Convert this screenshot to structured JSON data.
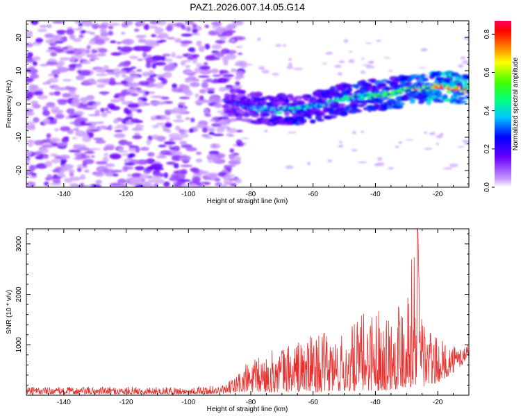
{
  "title": "PAZ1.2026.007.14.05.G14",
  "chart_data": [
    {
      "type": "heatmap",
      "title": "PAZ1.2026.007.14.05.G14",
      "xlabel": "Height of straight line (km)",
      "ylabel": "Frequency (Hz)",
      "xlim": [
        -152,
        -10
      ],
      "ylim": [
        -25,
        25
      ],
      "xticks": [
        -140,
        -120,
        -100,
        -80,
        -60,
        -40,
        -20
      ],
      "yticks": [
        -20,
        -10,
        0,
        10,
        20
      ],
      "grid": false,
      "colorbar": {
        "label": "Normalized spectral amplitude",
        "range": [
          0,
          0.87
        ],
        "ticks": [
          0.0,
          0.2,
          0.4,
          0.6,
          0.8
        ],
        "colormap": "rainbow (violet=low, red/pink=high)"
      },
      "noise_region": {
        "x_range": [
          -152,
          -87
        ],
        "y_range": [
          -25,
          25
        ],
        "amplitude": [
          0.05,
          0.2
        ]
      },
      "signal_ridge": {
        "description": "Bright ridge of spectral energy rising in frequency with height",
        "points": [
          {
            "x": -88,
            "y": 1,
            "amp": 0.3
          },
          {
            "x": -80,
            "y": -1,
            "amp": 0.4
          },
          {
            "x": -72,
            "y": -2,
            "amp": 0.45
          },
          {
            "x": -65,
            "y": -1.5,
            "amp": 0.5
          },
          {
            "x": -58,
            "y": -0.5,
            "amp": 0.45
          },
          {
            "x": -50,
            "y": 1.5,
            "amp": 0.55
          },
          {
            "x": -42,
            "y": 2.5,
            "amp": 0.55
          },
          {
            "x": -35,
            "y": 3,
            "amp": 0.6
          },
          {
            "x": -28,
            "y": 4.5,
            "amp": 0.65
          },
          {
            "x": -20,
            "y": 5,
            "amp": 0.8
          },
          {
            "x": -16,
            "y": 5,
            "amp": 0.85
          },
          {
            "x": -10,
            "y": 4,
            "amp": 0.7
          }
        ]
      }
    },
    {
      "type": "line",
      "xlabel": "Height of straight line (km)",
      "ylabel": "SNR (10 * v/v)",
      "xlim": [
        -152,
        -10
      ],
      "ylim": [
        0,
        3300
      ],
      "xticks": [
        -140,
        -120,
        -100,
        -80,
        -60,
        -40,
        -20
      ],
      "yticks": [
        1000,
        2000,
        3000
      ],
      "grid": false,
      "series": [
        {
          "name": "SNR",
          "color": "#e8302e",
          "envelope": [
            {
              "x": -152,
              "low": 20,
              "high": 160
            },
            {
              "x": -120,
              "low": 20,
              "high": 170
            },
            {
              "x": -100,
              "low": 20,
              "high": 160
            },
            {
              "x": -88,
              "low": 30,
              "high": 200
            },
            {
              "x": -82,
              "low": 50,
              "high": 620
            },
            {
              "x": -70,
              "low": 60,
              "high": 1000
            },
            {
              "x": -58,
              "low": 60,
              "high": 1250
            },
            {
              "x": -50,
              "low": 70,
              "high": 1200
            },
            {
              "x": -42,
              "low": 90,
              "high": 1800
            },
            {
              "x": -35,
              "low": 100,
              "high": 1700
            },
            {
              "x": -30,
              "low": 150,
              "high": 2350
            },
            {
              "x": -26.5,
              "low": 200,
              "high": 3300
            },
            {
              "x": -24,
              "low": 150,
              "high": 1500
            },
            {
              "x": -20,
              "low": 250,
              "high": 1100
            },
            {
              "x": -16,
              "low": 400,
              "high": 1050
            },
            {
              "x": -12,
              "low": 600,
              "high": 1000
            },
            {
              "x": -10,
              "low": 800,
              "high": 1050
            }
          ]
        }
      ]
    }
  ]
}
